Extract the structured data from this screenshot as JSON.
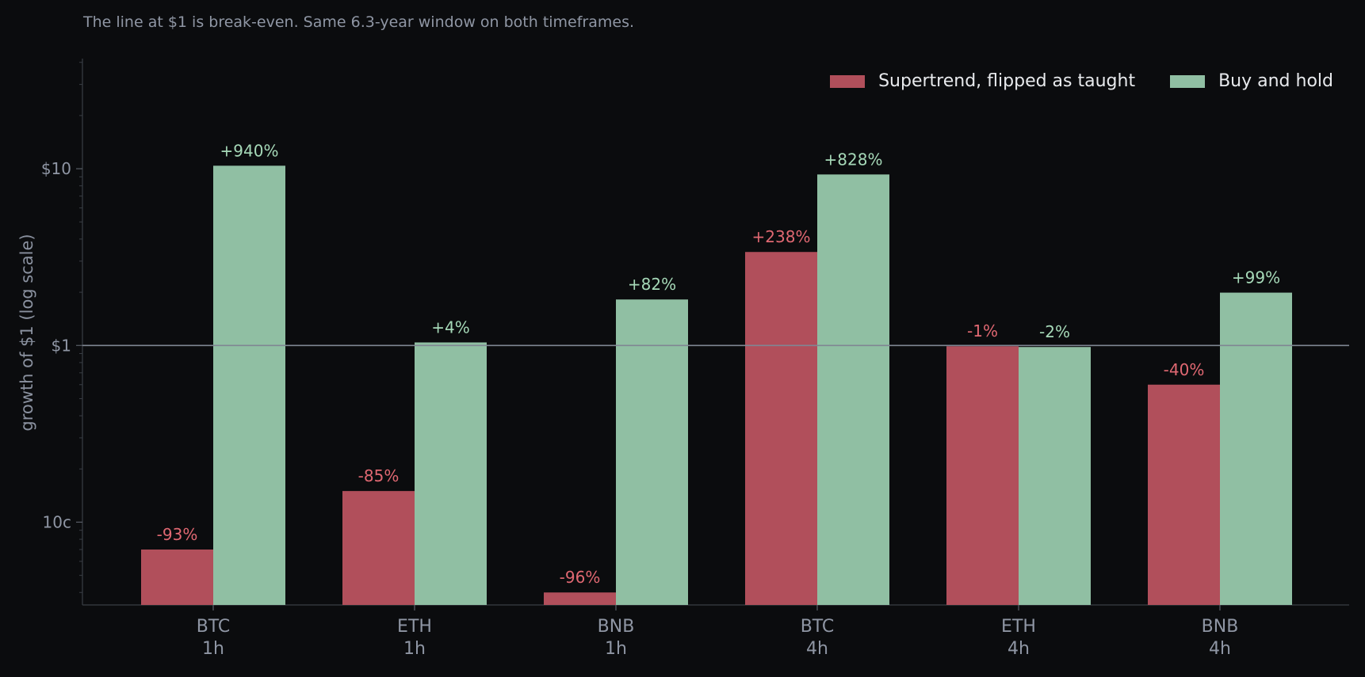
{
  "subtitle": "The line at $1 is break-even. Same 6.3-year window on both timeframes.",
  "chart_data": {
    "type": "bar",
    "ylabel": "growth of $1 (log scale)",
    "yscale": "log",
    "ylim": [
      0.034,
      42
    ],
    "yticks": [
      {
        "value": 0.1,
        "label": "10c"
      },
      {
        "value": 1,
        "label": "$1"
      },
      {
        "value": 10,
        "label": "$10"
      }
    ],
    "reference_line": {
      "value": 1
    },
    "legend_position": "top-right",
    "categories": [
      {
        "asset": "BTC",
        "timeframe": "1h"
      },
      {
        "asset": "ETH",
        "timeframe": "1h"
      },
      {
        "asset": "BNB",
        "timeframe": "1h"
      },
      {
        "asset": "BTC",
        "timeframe": "4h"
      },
      {
        "asset": "ETH",
        "timeframe": "4h"
      },
      {
        "asset": "BNB",
        "timeframe": "4h"
      }
    ],
    "series": [
      {
        "name": "Supertrend, flipped as taught",
        "color": "#b14f5b",
        "label_color": "#e06872",
        "values": [
          0.07,
          0.15,
          0.04,
          3.38,
          0.99,
          0.6
        ],
        "labels": [
          "-93%",
          "-85%",
          "-96%",
          "+238%",
          "-1%",
          "-40%"
        ]
      },
      {
        "name": "Buy and hold",
        "color": "#90bfa3",
        "label_color": "#a6d9b8",
        "values": [
          10.4,
          1.04,
          1.82,
          9.28,
          0.98,
          1.99
        ],
        "labels": [
          "+940%",
          "+4%",
          "+82%",
          "+828%",
          "-2%",
          "+99%"
        ]
      }
    ]
  }
}
